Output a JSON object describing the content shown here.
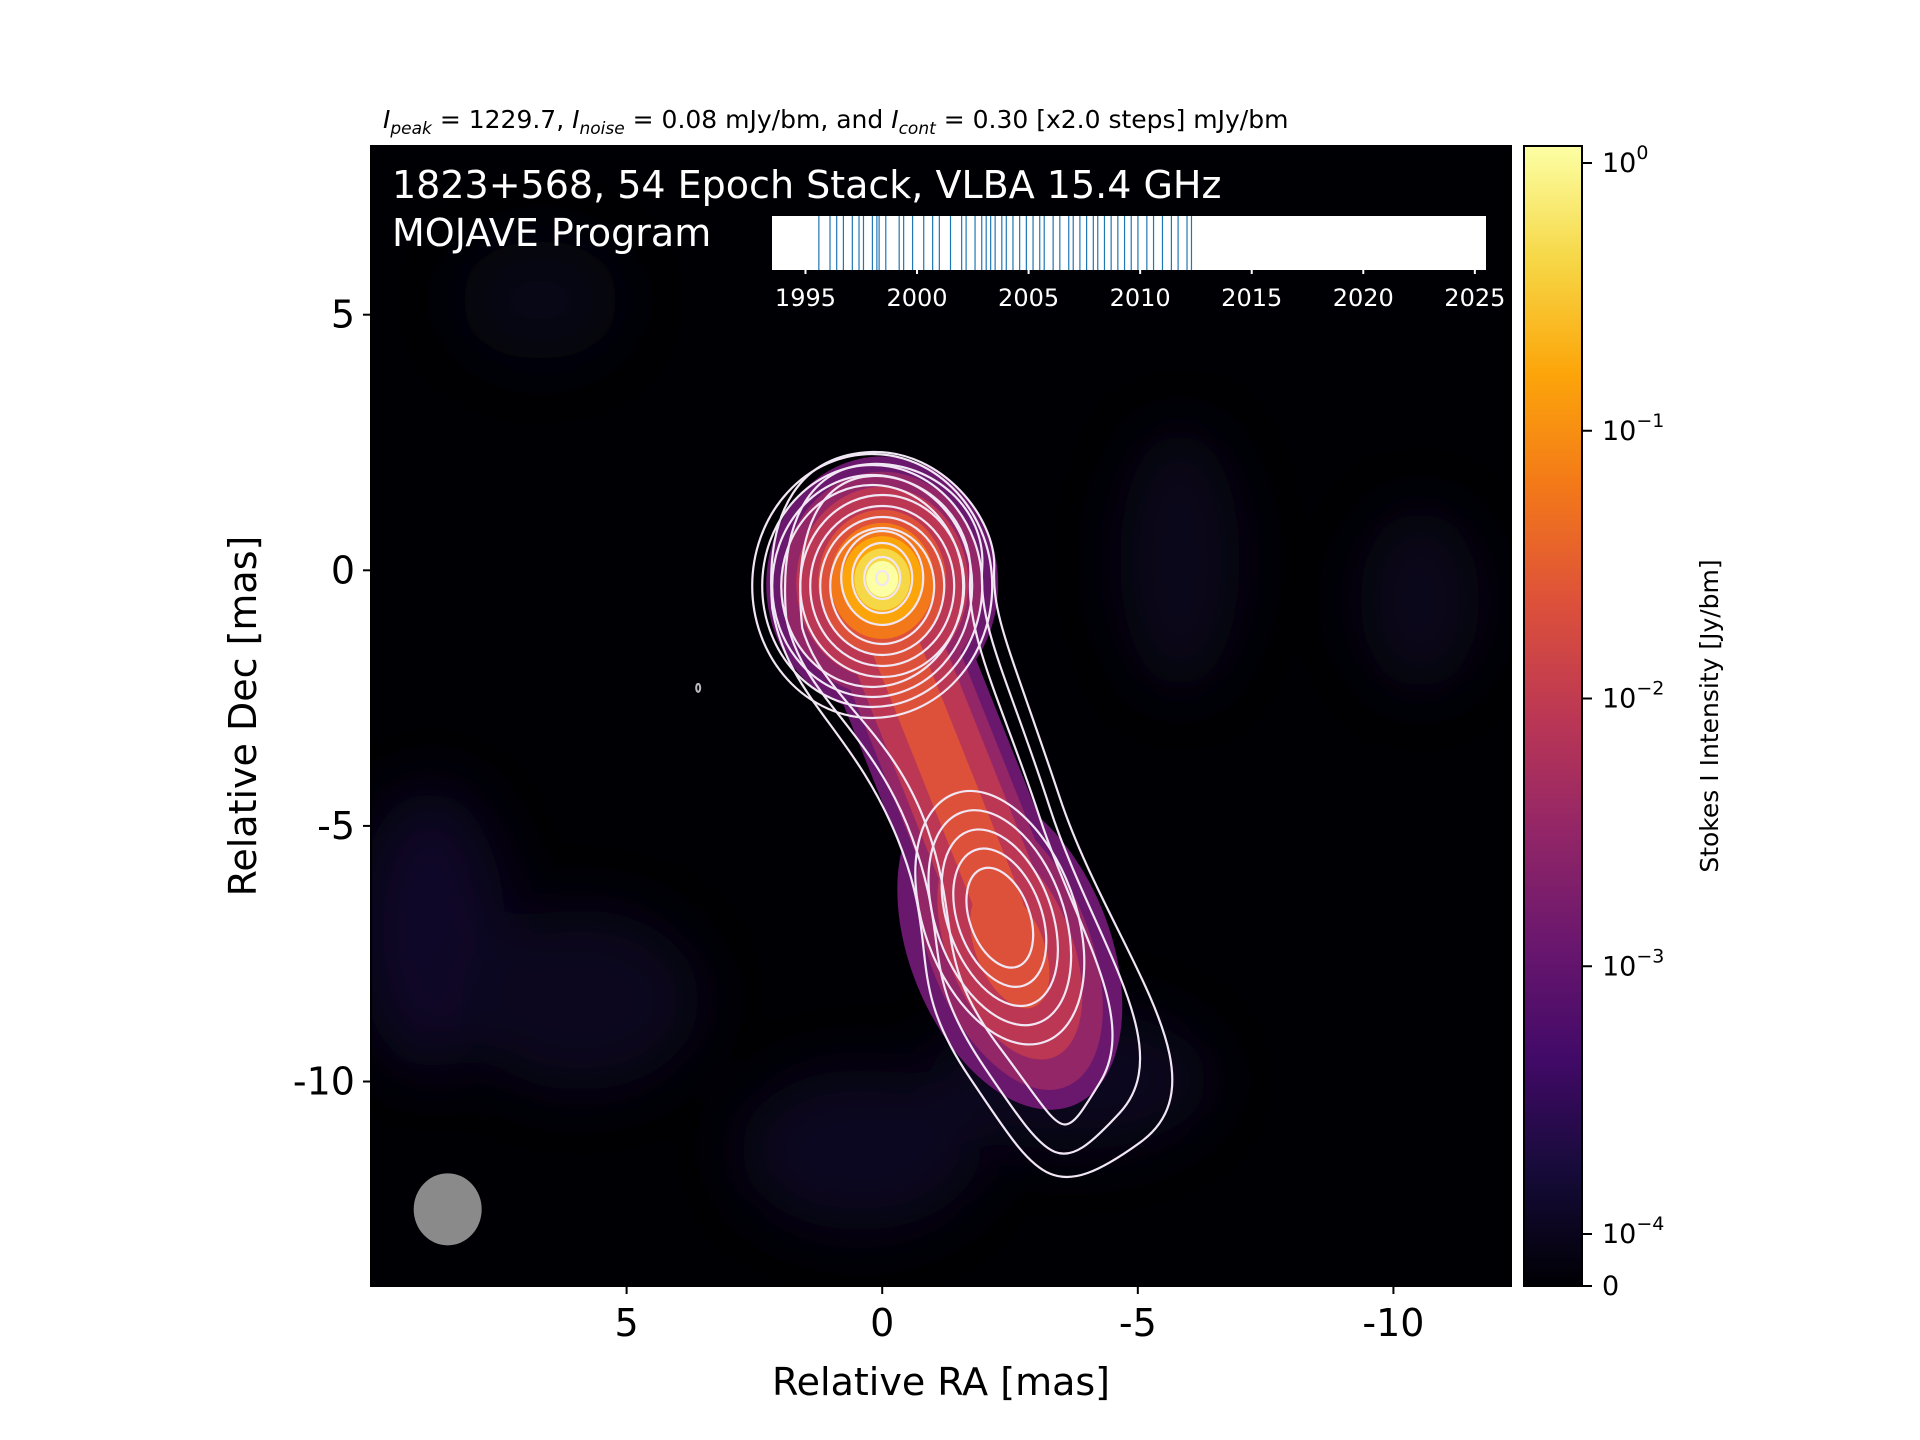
{
  "chart_data": {
    "type": "heatmap",
    "title_parts": {
      "peak_sym": "I",
      "peak_sub": "peak",
      "peak_val": " = 1229.7, ",
      "noise_sym": "I",
      "noise_sub": "noise",
      "noise_val": " = 0.08 mJy/bm, and ",
      "cont_sym": "I",
      "cont_sub": "cont",
      "cont_val": " = 0.30 [x2.0 steps] mJy/bm"
    },
    "overlay_line1": "1823+568, 54 Epoch Stack, VLBA 15.4 GHz",
    "overlay_line2": "MOJAVE Program",
    "xlabel": "Relative RA [mas]",
    "ylabel": "Relative Dec [mas]",
    "xlim": [
      10,
      -12.3
    ],
    "ylim": [
      -14,
      8.3
    ],
    "x_ticks": [
      {
        "value": 5,
        "label": "5"
      },
      {
        "value": 0,
        "label": "0"
      },
      {
        "value": -5,
        "label": "-5"
      },
      {
        "value": -10,
        "label": "-10"
      }
    ],
    "y_ticks": [
      {
        "value": 5,
        "label": "5"
      },
      {
        "value": 0,
        "label": "0"
      },
      {
        "value": -5,
        "label": "-5"
      },
      {
        "value": -10,
        "label": "-10"
      }
    ],
    "colorbar": {
      "label": "Stokes I Intensity [Jy/bm]",
      "colormap": "inferno",
      "scale": "log",
      "ticks": [
        {
          "value": 1,
          "base": "10",
          "exp": "0"
        },
        {
          "value": 0.1,
          "base": "10",
          "exp": "−1"
        },
        {
          "value": 0.01,
          "base": "10",
          "exp": "−2"
        },
        {
          "value": 0.001,
          "base": "10",
          "exp": "−3"
        },
        {
          "value": 0.0001,
          "base": "10",
          "exp": "−4"
        },
        {
          "value": 0,
          "label": "0"
        }
      ]
    },
    "beam": {
      "x": 8.5,
      "y": -12.5,
      "color": "#8a8a8a"
    },
    "components": [
      {
        "name": "core",
        "x": 0.0,
        "y": -0.15,
        "peak_jy": 1.2297
      },
      {
        "name": "jet",
        "x": -2.3,
        "y": -6.6,
        "peak_jy": 0.012
      }
    ],
    "contour_color": "#f1e6f4",
    "epoch_timeline": {
      "xlim": [
        1993.5,
        2025.5
      ],
      "ticks": [
        "1995",
        "2000",
        "2005",
        "2010",
        "2015",
        "2020",
        "2025"
      ],
      "line_color": "#1f77b4",
      "epochs": [
        1995.6,
        1996.1,
        1996.4,
        1996.7,
        1997.1,
        1997.4,
        1997.6,
        1998.0,
        1998.2,
        1998.3,
        1998.6,
        1999.2,
        1999.4,
        1999.8,
        2000.3,
        2000.7,
        2001.0,
        2001.5,
        2002.0,
        2002.2,
        2002.6,
        2002.9,
        2003.1,
        2003.3,
        2003.5,
        2003.8,
        2004.0,
        2004.3,
        2004.6,
        2004.9,
        2005.2,
        2005.5,
        2005.7,
        2006.1,
        2006.4,
        2006.8,
        2007.0,
        2007.3,
        2007.6,
        2007.9,
        2008.1,
        2008.4,
        2008.7,
        2009.0,
        2009.3,
        2009.6,
        2009.9,
        2010.3,
        2010.6,
        2011.0,
        2011.4,
        2011.7,
        2012.1,
        2012.3
      ]
    }
  }
}
